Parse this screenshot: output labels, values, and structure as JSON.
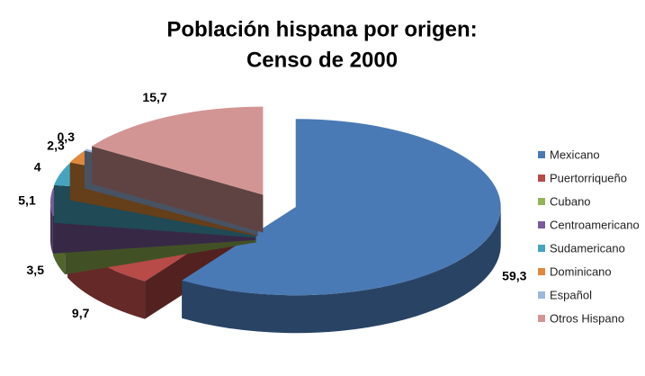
{
  "chart_data": {
    "type": "pie3d",
    "title": "Población hispana por origen:",
    "subtitle": "Censo de 2000",
    "categories": [
      "Mexicano",
      "Puertorriqueño",
      "Cubano",
      "Centroamericano",
      "Sudamericano",
      "Dominicano",
      "Español",
      "Otros Hispano"
    ],
    "values": [
      59.3,
      9.7,
      3.5,
      5.1,
      4,
      2.3,
      0.3,
      15.7
    ],
    "value_labels": [
      "59,3",
      "9,7",
      "3,5",
      "5,1",
      "4",
      "2,3",
      "0,3",
      "15,7"
    ],
    "colors": [
      "#4a7ab5",
      "#b84a48",
      "#93b553",
      "#7a5b9b",
      "#45a5c0",
      "#e0893a",
      "#9db8dd",
      "#d39594"
    ],
    "legend": "right"
  }
}
